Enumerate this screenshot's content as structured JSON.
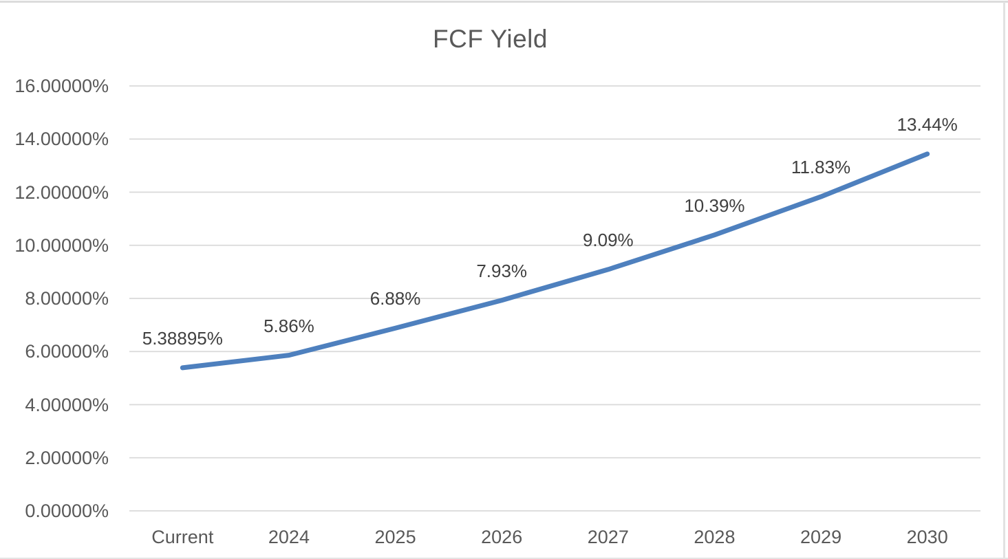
{
  "chart_data": {
    "type": "line",
    "title": "FCF Yield",
    "xlabel": "",
    "ylabel": "",
    "categories": [
      "Current",
      "2024",
      "2025",
      "2026",
      "2027",
      "2028",
      "2029",
      "2030"
    ],
    "values": [
      5.38895,
      5.86,
      6.88,
      7.93,
      9.09,
      10.39,
      11.83,
      13.44
    ],
    "point_labels": [
      "5.38895%",
      "5.86%",
      "6.88%",
      "7.93%",
      "9.09%",
      "10.39%",
      "11.83%",
      "13.44%"
    ],
    "ylim": [
      0,
      16
    ],
    "ytick_step": 2,
    "ytick_labels": [
      "0.00000%",
      "2.00000%",
      "4.00000%",
      "6.00000%",
      "8.00000%",
      "10.00000%",
      "12.00000%",
      "14.00000%",
      "16.00000%"
    ],
    "grid": true,
    "legend": false,
    "colors": {
      "line": "#4E80BE",
      "gridline": "#D9D9D9",
      "title_text": "#595959",
      "axis_text": "#595959",
      "label_text": "#404040"
    }
  }
}
